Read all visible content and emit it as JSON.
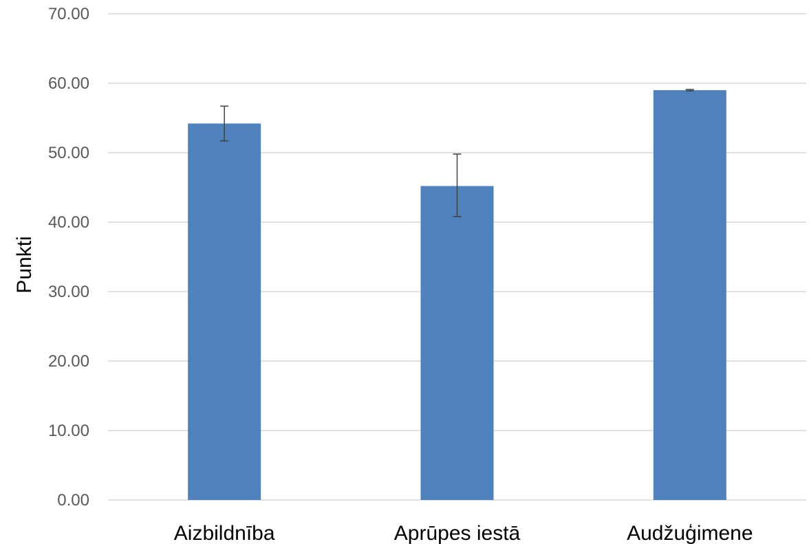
{
  "chart_data": {
    "type": "bar",
    "categories": [
      "Aizbildnība",
      "Aprūpes iestā",
      "Audžuģimene"
    ],
    "values": [
      54.2,
      45.2,
      59.0
    ],
    "error_bars": [
      {
        "lower": 51.7,
        "upper": 56.7
      },
      {
        "lower": 40.8,
        "upper": 49.8
      },
      {
        "lower": 58.9,
        "upper": 59.1
      }
    ],
    "ylabel": "Punkti",
    "ylim": [
      0,
      70
    ],
    "yticks": [
      "0.00",
      "10.00",
      "20.00",
      "30.00",
      "40.00",
      "50.00",
      "60.00",
      "70.00"
    ],
    "grid": true,
    "legend": "none",
    "colors": {
      "bar": "#4F81BD",
      "grid": "#D9D9D9",
      "error_bar": "#404040"
    }
  }
}
